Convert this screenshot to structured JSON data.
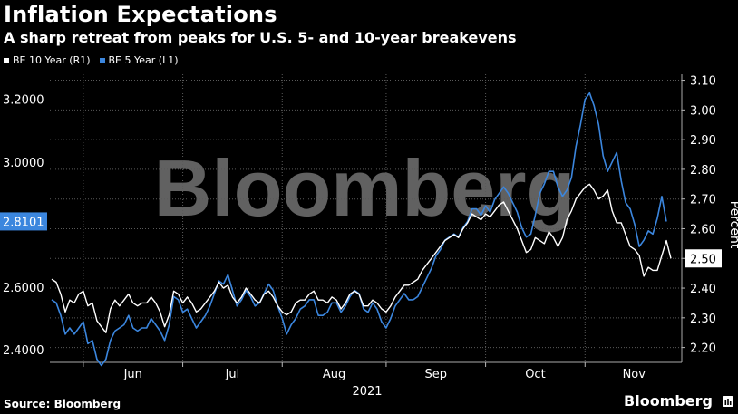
{
  "header": {
    "title": "Inflation Expectations",
    "subtitle": "A sharp retreat from peaks for U.S. 5- and 10-year breakevens"
  },
  "footer": {
    "source": "Source: Bloomberg",
    "brand": "Bloomberg"
  },
  "watermark": "Bloomberg",
  "colors": {
    "be10": "#ffffff",
    "be5": "#3b86de",
    "grid": "#5a5a5a",
    "background": "#000000"
  },
  "chart_data": {
    "type": "line",
    "title": "Inflation Expectations",
    "subtitle": "A sharp retreat from peaks for U.S. 5- and 10-year breakevens",
    "xlabel": "2021",
    "x_ticks": [
      "Jun",
      "Jul",
      "Aug",
      "Sep",
      "Oct",
      "Nov"
    ],
    "left_axis": {
      "min": 2.36,
      "max": 3.28,
      "ticks": [
        "2.4000",
        "2.6000",
        "2.8000",
        "3.0000",
        "3.2000"
      ]
    },
    "right_axis": {
      "label": "Percent",
      "min": 2.15,
      "max": 3.12,
      "ticks": [
        "2.20",
        "2.30",
        "2.40",
        "2.50",
        "2.60",
        "2.70",
        "2.80",
        "2.90",
        "3.00",
        "3.10"
      ]
    },
    "last_values": {
      "be5": "2.8101",
      "be10": "2.50"
    },
    "x_range": [
      0,
      137
    ],
    "month_starts": [
      7,
      29,
      51,
      74,
      96,
      118
    ],
    "series": [
      {
        "name": "BE 10 Year (R1)",
        "axis": "right",
        "values": [
          2.43,
          2.42,
          2.38,
          2.32,
          2.36,
          2.35,
          2.38,
          2.39,
          2.34,
          2.35,
          2.29,
          2.27,
          2.25,
          2.33,
          2.36,
          2.34,
          2.36,
          2.38,
          2.35,
          2.34,
          2.35,
          2.35,
          2.37,
          2.35,
          2.32,
          2.27,
          2.31,
          2.39,
          2.38,
          2.35,
          2.37,
          2.35,
          2.32,
          2.33,
          2.35,
          2.37,
          2.39,
          2.42,
          2.4,
          2.41,
          2.37,
          2.35,
          2.37,
          2.4,
          2.38,
          2.36,
          2.35,
          2.38,
          2.39,
          2.37,
          2.34,
          2.32,
          2.31,
          2.32,
          2.35,
          2.36,
          2.36,
          2.38,
          2.39,
          2.36,
          2.36,
          2.35,
          2.37,
          2.36,
          2.33,
          2.35,
          2.38,
          2.39,
          2.38,
          2.34,
          2.34,
          2.36,
          2.35,
          2.33,
          2.32,
          2.34,
          2.37,
          2.39,
          2.41,
          2.41,
          2.42,
          2.43,
          2.46,
          2.48,
          2.5,
          2.52,
          2.54,
          2.56,
          2.57,
          2.58,
          2.57,
          2.6,
          2.62,
          2.65,
          2.64,
          2.63,
          2.65,
          2.64,
          2.66,
          2.68,
          2.69,
          2.66,
          2.63,
          2.6,
          2.56,
          2.52,
          2.53,
          2.57,
          2.56,
          2.55,
          2.59,
          2.57,
          2.54,
          2.57,
          2.63,
          2.66,
          2.7,
          2.72,
          2.74,
          2.75,
          2.73,
          2.7,
          2.71,
          2.73,
          2.66,
          2.62,
          2.62,
          2.58,
          2.54,
          2.53,
          2.51,
          2.44,
          2.47,
          2.46,
          2.46,
          2.51,
          2.56,
          2.5
        ]
      },
      {
        "name": "BE 5 Year (L1)",
        "axis": "left",
        "values": [
          2.56,
          2.55,
          2.51,
          2.45,
          2.47,
          2.45,
          2.47,
          2.49,
          2.42,
          2.43,
          2.37,
          2.35,
          2.37,
          2.43,
          2.46,
          2.47,
          2.48,
          2.51,
          2.47,
          2.46,
          2.47,
          2.47,
          2.5,
          2.48,
          2.46,
          2.43,
          2.48,
          2.57,
          2.56,
          2.52,
          2.53,
          2.5,
          2.47,
          2.49,
          2.51,
          2.54,
          2.58,
          2.62,
          2.61,
          2.64,
          2.59,
          2.54,
          2.56,
          2.59,
          2.57,
          2.54,
          2.55,
          2.58,
          2.61,
          2.59,
          2.54,
          2.5,
          2.45,
          2.48,
          2.5,
          2.53,
          2.54,
          2.56,
          2.56,
          2.51,
          2.51,
          2.52,
          2.55,
          2.55,
          2.52,
          2.54,
          2.57,
          2.59,
          2.58,
          2.53,
          2.52,
          2.55,
          2.53,
          2.49,
          2.47,
          2.5,
          2.54,
          2.56,
          2.58,
          2.56,
          2.56,
          2.57,
          2.6,
          2.63,
          2.66,
          2.7,
          2.72,
          2.75,
          2.76,
          2.77,
          2.76,
          2.79,
          2.81,
          2.85,
          2.85,
          2.83,
          2.86,
          2.84,
          2.88,
          2.9,
          2.92,
          2.9,
          2.87,
          2.84,
          2.79,
          2.76,
          2.77,
          2.83,
          2.9,
          2.93,
          2.97,
          2.97,
          2.92,
          2.89,
          2.91,
          2.95,
          3.05,
          3.12,
          3.2,
          3.22,
          3.18,
          3.12,
          3.02,
          2.97,
          3.0,
          3.03,
          2.94,
          2.87,
          2.85,
          2.8,
          2.73,
          2.75,
          2.78,
          2.77,
          2.82,
          2.89,
          2.81
        ]
      }
    ]
  }
}
